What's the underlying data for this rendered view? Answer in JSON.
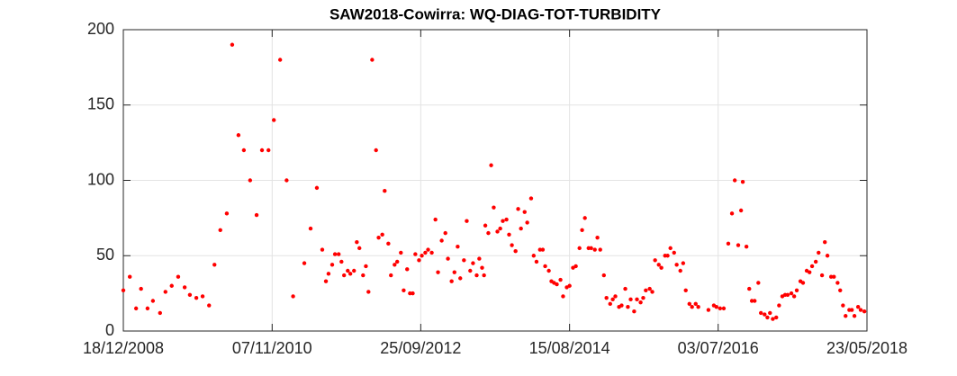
{
  "chart_data": {
    "type": "scatter",
    "title": "SAW2018-Cowirra: WQ-DIAG-TOT-TURBIDITY",
    "color": "#ff0000",
    "grid": true,
    "xlim": [
      "2008-12-18",
      "2018-05-23"
    ],
    "xticks": [
      {
        "value": "2008-12-18",
        "label": "18/12/2008"
      },
      {
        "value": "2010-11-07",
        "label": "07/11/2010"
      },
      {
        "value": "2012-09-25",
        "label": "25/09/2012"
      },
      {
        "value": "2014-08-15",
        "label": "15/08/2014"
      },
      {
        "value": "2016-07-03",
        "label": "03/07/2016"
      },
      {
        "value": "2018-05-23",
        "label": "23/05/2018"
      }
    ],
    "ylim": [
      0,
      200
    ],
    "yticks": [
      0,
      50,
      100,
      150,
      200
    ],
    "x": [
      "2008-12-18",
      "2009-01-17",
      "2009-02-15",
      "2009-03-10",
      "2009-04-09",
      "2009-05-04",
      "2009-06-06",
      "2009-07-01",
      "2009-07-30",
      "2009-08-29",
      "2009-09-28",
      "2009-10-22",
      "2009-11-21",
      "2009-12-20",
      "2010-01-19",
      "2010-02-13",
      "2010-03-12",
      "2010-04-11",
      "2010-05-06",
      "2010-06-04",
      "2010-06-29",
      "2010-07-28",
      "2010-08-27",
      "2010-09-21",
      "2010-10-21",
      "2010-11-15",
      "2010-12-14",
      "2011-01-13",
      "2011-02-12",
      "2011-04-05",
      "2011-05-04",
      "2011-06-02",
      "2011-06-27",
      "2011-07-14",
      "2011-07-26",
      "2011-08-12",
      "2011-08-25",
      "2011-09-11",
      "2011-09-24",
      "2011-10-06",
      "2011-10-23",
      "2011-11-04",
      "2011-11-21",
      "2011-12-04",
      "2011-12-16",
      "2012-01-02",
      "2012-01-15",
      "2012-01-27",
      "2012-02-13",
      "2012-03-02",
      "2012-03-14",
      "2012-03-31",
      "2012-04-11",
      "2012-04-28",
      "2012-05-10",
      "2012-05-27",
      "2012-06-08",
      "2012-06-25",
      "2012-07-08",
      "2012-07-24",
      "2012-08-06",
      "2012-08-19",
      "2012-08-31",
      "2012-09-17",
      "2012-09-30",
      "2012-10-16",
      "2012-10-29",
      "2012-11-15",
      "2012-12-02",
      "2012-12-14",
      "2012-12-31",
      "2013-01-17",
      "2013-01-29",
      "2013-02-15",
      "2013-02-28",
      "2013-03-15",
      "2013-03-27",
      "2013-04-13",
      "2013-04-26",
      "2013-05-12",
      "2013-05-25",
      "2013-06-11",
      "2013-06-23",
      "2013-07-06",
      "2013-07-15",
      "2013-07-21",
      "2013-08-04",
      "2013-08-17",
      "2013-08-29",
      "2013-09-15",
      "2013-09-28",
      "2013-10-10",
      "2013-10-27",
      "2013-11-08",
      "2013-11-21",
      "2013-12-08",
      "2013-12-20",
      "2014-01-02",
      "2014-01-19",
      "2014-01-31",
      "2014-02-18",
      "2014-03-02",
      "2014-03-15",
      "2014-03-31",
      "2014-04-13",
      "2014-04-24",
      "2014-05-11",
      "2014-05-23",
      "2014-06-04",
      "2014-06-17",
      "2014-07-04",
      "2014-07-16",
      "2014-08-02",
      "2014-08-15",
      "2014-08-31",
      "2014-09-13",
      "2014-09-30",
      "2014-10-12",
      "2014-10-25",
      "2014-11-11",
      "2014-11-23",
      "2014-12-10",
      "2014-12-22",
      "2015-01-04",
      "2015-01-21",
      "2015-02-02",
      "2015-02-19",
      "2015-03-03",
      "2015-03-15",
      "2015-04-01",
      "2015-04-13",
      "2015-04-30",
      "2015-05-12",
      "2015-05-25",
      "2015-06-10",
      "2015-06-23",
      "2015-07-10",
      "2015-07-22",
      "2015-08-03",
      "2015-08-21",
      "2015-09-02",
      "2015-09-15",
      "2015-10-02",
      "2015-10-14",
      "2015-10-31",
      "2015-11-12",
      "2015-11-25",
      "2015-12-12",
      "2015-12-24",
      "2016-01-10",
      "2016-01-23",
      "2016-02-04",
      "2016-02-21",
      "2016-03-04",
      "2016-03-21",
      "2016-04-02",
      "2016-05-19",
      "2016-06-13",
      "2016-06-25",
      "2016-07-12",
      "2016-07-29",
      "2016-08-19",
      "2016-09-05",
      "2016-09-18",
      "2016-10-04",
      "2016-10-17",
      "2016-10-25",
      "2016-11-11",
      "2016-11-24",
      "2016-12-06",
      "2016-12-19",
      "2017-01-05",
      "2017-01-17",
      "2017-02-03",
      "2017-02-16",
      "2017-02-28",
      "2017-03-13",
      "2017-03-29",
      "2017-04-11",
      "2017-04-26",
      "2017-05-09",
      "2017-05-21",
      "2017-06-07",
      "2017-06-20",
      "2017-07-02",
      "2017-07-19",
      "2017-07-31",
      "2017-08-17",
      "2017-08-30",
      "2017-09-11",
      "2017-09-28",
      "2017-10-11",
      "2017-10-27",
      "2017-11-09",
      "2017-11-21",
      "2017-12-08",
      "2017-12-21",
      "2018-01-07",
      "2018-01-19",
      "2018-02-01",
      "2018-02-13",
      "2018-03-02",
      "2018-03-14",
      "2018-03-26",
      "2018-04-12",
      "2018-04-24",
      "2018-05-11"
    ],
    "values": [
      27,
      36,
      15,
      28,
      15,
      20,
      12,
      26,
      30,
      36,
      29,
      24,
      22,
      23,
      17,
      44,
      67,
      78,
      190,
      130,
      120,
      100,
      77,
      120,
      120,
      140,
      180,
      100,
      23,
      45,
      68,
      95,
      54,
      33,
      38,
      44,
      51,
      51,
      46,
      37,
      40,
      38,
      40,
      59,
      55,
      37,
      43,
      26,
      180,
      120,
      62,
      64,
      93,
      58,
      37,
      44,
      46,
      52,
      27,
      41,
      25,
      25,
      51,
      47,
      50,
      52,
      54,
      52,
      74,
      39,
      60,
      65,
      48,
      33,
      39,
      56,
      35,
      47,
      73,
      40,
      45,
      37,
      48,
      42,
      37,
      70,
      65,
      110,
      82,
      66,
      68,
      73,
      74,
      64,
      57,
      53,
      81,
      68,
      79,
      72,
      88,
      50,
      46,
      54,
      54,
      43,
      40,
      33,
      32,
      31,
      34,
      23,
      29,
      30,
      42,
      43,
      55,
      67,
      75,
      55,
      55,
      54,
      62,
      54,
      37,
      22,
      18,
      21,
      23,
      16,
      17,
      28,
      16,
      21,
      13,
      21,
      19,
      22,
      27,
      28,
      26,
      47,
      44,
      42,
      50,
      50,
      55,
      52,
      44,
      40,
      45,
      27,
      18,
      16,
      18,
      16,
      14,
      17,
      16,
      15,
      15,
      58,
      78,
      100,
      57,
      80,
      99,
      56,
      28,
      20,
      20,
      32,
      12,
      11,
      9,
      12,
      8,
      9,
      17,
      23,
      24,
      24,
      25,
      23,
      27,
      33,
      32,
      40,
      39,
      43,
      46,
      52,
      37,
      59,
      50,
      36,
      36,
      32,
      27,
      17,
      10,
      14,
      14,
      10,
      16,
      14,
      13
    ]
  }
}
